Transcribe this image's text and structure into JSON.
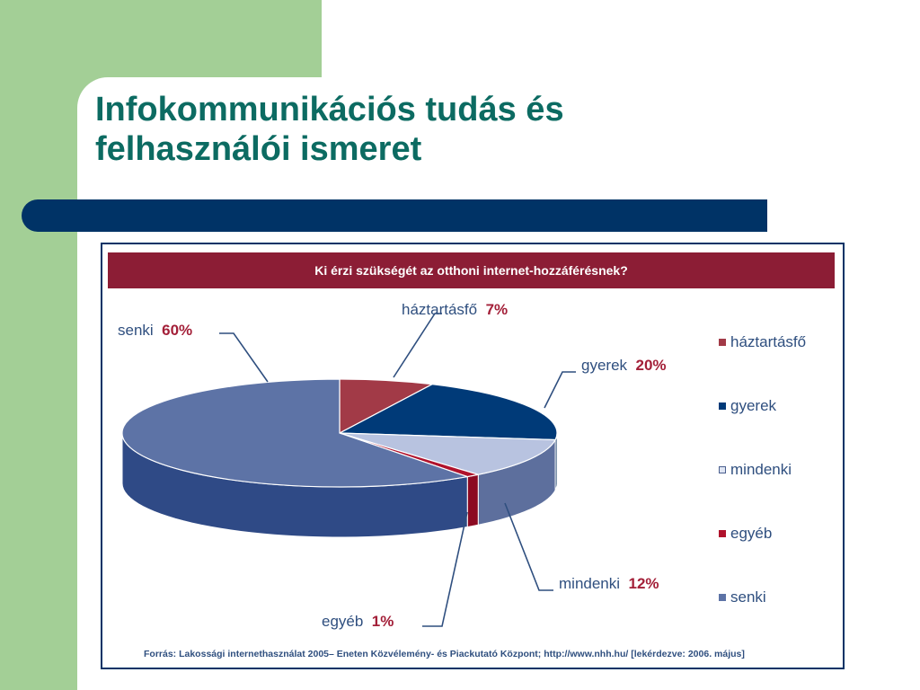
{
  "slide": {
    "title_line1": "Infokommunikációs tudás és",
    "title_line2": "felhasználói ismeret"
  },
  "colors": {
    "left_band": "#a3cf96",
    "title_text": "#0c6b62",
    "navy_bar": "#003366",
    "chart_title_band": "#8c1d35"
  },
  "chart_data": {
    "type": "pie",
    "title": "Ki érzi szükségét az otthoni internet-hozzáférésnek?",
    "unit": "%",
    "slices": [
      {
        "label": "háztartásfő",
        "value": 7,
        "value_label": "7%",
        "color": "#a23a47",
        "side": "#7a2230"
      },
      {
        "label": "gyerek",
        "value": 20,
        "value_label": "20%",
        "color": "#003a78",
        "side": "#002a5a"
      },
      {
        "label": "mindenki",
        "value": 12,
        "value_label": "12%",
        "color": "#b8c3e0",
        "side": "#5d6f9d"
      },
      {
        "label": "egyéb",
        "value": 1,
        "value_label": "1%",
        "color": "#b0122c",
        "side": "#8c0a22"
      },
      {
        "label": "senki",
        "value": 60,
        "value_label": "60%",
        "color": "#5d73a6",
        "side": "#2f4a86"
      }
    ],
    "legend": [
      "háztartásfő",
      "gyerek",
      "mindenki",
      "egyéb",
      "senki"
    ],
    "legend_placement": "right",
    "source": "Forrás: Lakossági internethasználat 2005– Eneten Közvélemény- és Piackutató Központ; http://www.nhh.hu/ [lekérdezve: 2006. május]"
  }
}
